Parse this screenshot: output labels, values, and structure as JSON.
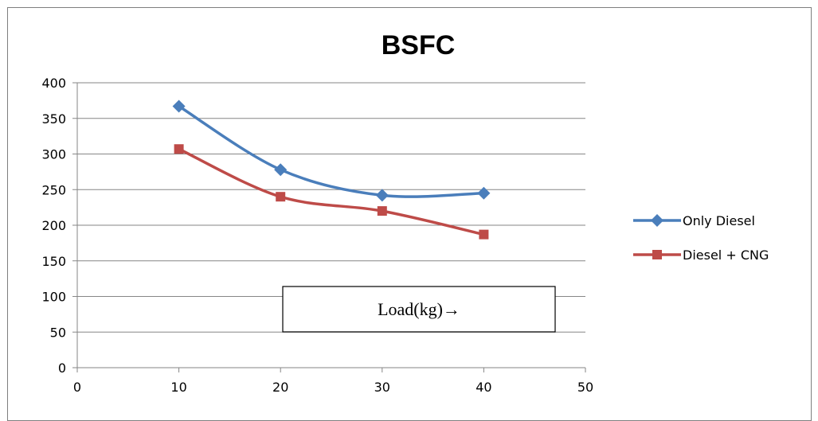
{
  "chart_data": {
    "type": "line",
    "title": "BSFC",
    "xlabel": "",
    "ylabel": "",
    "xlim": [
      0,
      50
    ],
    "ylim": [
      0,
      400
    ],
    "x_ticks": [
      "0",
      "10",
      "20",
      "30",
      "40",
      "50"
    ],
    "y_ticks": [
      "0",
      "50",
      "100",
      "150",
      "200",
      "250",
      "300",
      "350",
      "400"
    ],
    "x": [
      10,
      20,
      30,
      40
    ],
    "series": [
      {
        "name": "Only Diesel",
        "values": [
          367,
          278,
          242,
          245
        ],
        "color": "#4a7ebb",
        "marker": "diamond"
      },
      {
        "name": "Diesel + CNG",
        "values": [
          307,
          240,
          220,
          187
        ],
        "color": "#be4b48",
        "marker": "square"
      }
    ],
    "grid": true,
    "legend_position": "right",
    "annotation": "Load(kg)→"
  }
}
